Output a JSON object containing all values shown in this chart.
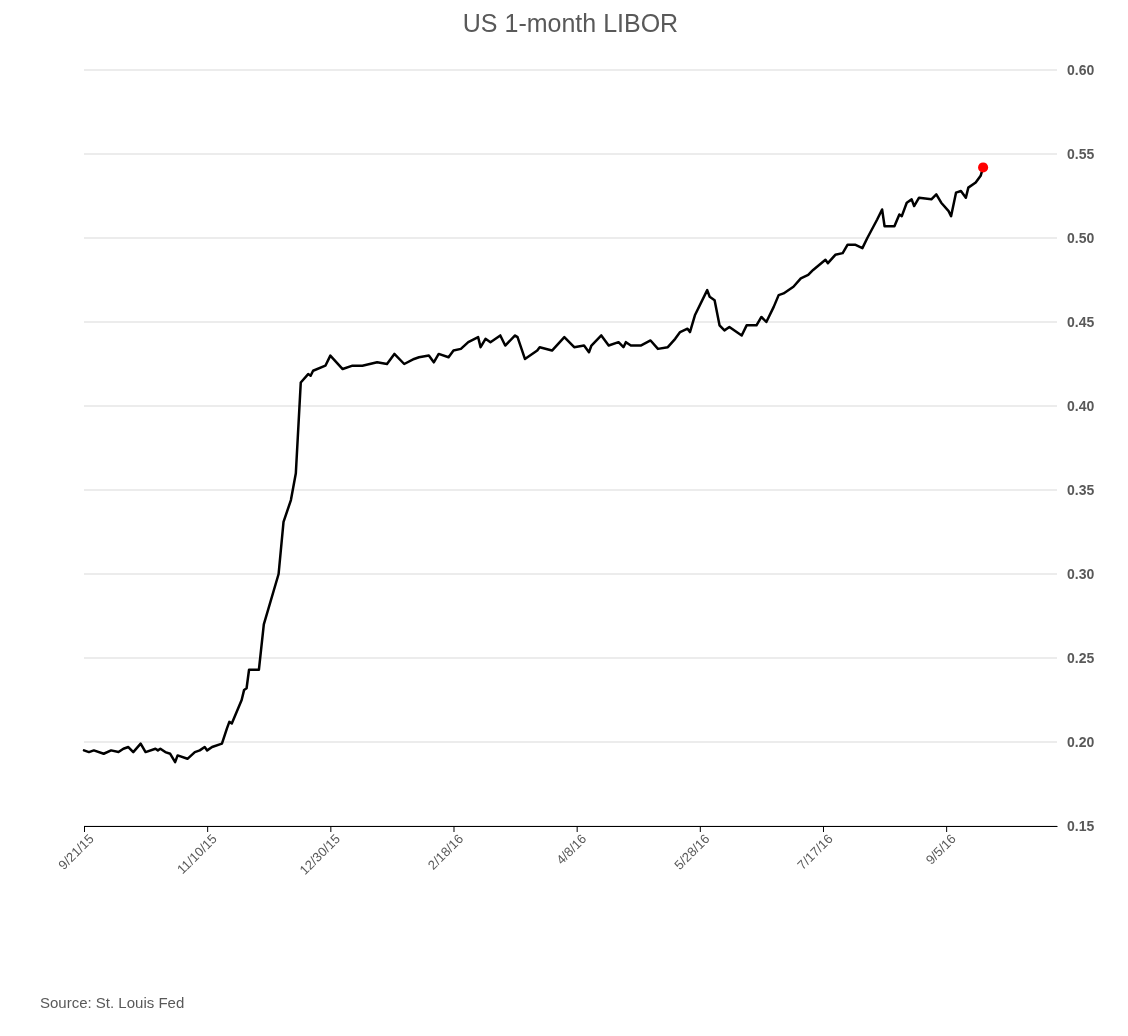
{
  "chart_data": {
    "type": "line",
    "title": "US 1-month LIBOR",
    "xlim": [
      "2015-09-21",
      "2016-10-20"
    ],
    "xticks": [
      {
        "value": "2015-09-21",
        "label": "9/21/15"
      },
      {
        "value": "2015-11-10",
        "label": "11/10/15"
      },
      {
        "value": "2015-12-30",
        "label": "12/30/15"
      },
      {
        "value": "2016-02-18",
        "label": "2/18/16"
      },
      {
        "value": "2016-04-08",
        "label": "4/8/16"
      },
      {
        "value": "2016-05-28",
        "label": "5/28/16"
      },
      {
        "value": "2016-07-17",
        "label": "7/17/16"
      },
      {
        "value": "2016-09-05",
        "label": "9/5/16"
      }
    ],
    "ylim": [
      0.15,
      0.6
    ],
    "yticks": [
      {
        "value": 0.6,
        "label": "0.60"
      },
      0.55,
      {
        "value": 0.5,
        "label": "0.50"
      },
      0.45,
      {
        "value": 0.4,
        "label": "0.40"
      },
      0.35,
      {
        "value": 0.3,
        "label": "0.30"
      },
      0.25,
      {
        "value": 0.2,
        "label": "0.20"
      },
      0.15
    ],
    "grid": "y",
    "annotations": [
      "Source: St. Louis Fed"
    ],
    "series": [
      {
        "color": "#000000",
        "x": [
          "2015-09-21",
          "2015-09-23",
          "2015-09-25",
          "2015-09-29",
          "2015-10-02",
          "2015-10-05",
          "2015-10-07",
          "2015-10-09",
          "2015-10-11",
          "2015-10-14",
          "2015-10-16",
          "2015-10-20",
          "2015-10-21",
          "2015-10-22",
          "2015-10-24",
          "2015-10-26",
          "2015-10-28",
          "2015-10-29",
          "2015-11-02",
          "2015-11-05",
          "2015-11-07",
          "2015-11-09",
          "2015-11-10",
          "2015-11-12",
          "2015-11-16",
          "2015-11-18",
          "2015-11-19",
          "2015-11-20",
          "2015-11-24",
          "2015-11-25",
          "2015-11-26",
          "2015-11-27",
          "2015-12-01",
          "2015-12-03",
          "2015-12-09",
          "2015-12-11",
          "2015-12-14",
          "2015-12-16",
          "2015-12-18",
          "2015-12-21",
          "2015-12-22",
          "2015-12-23",
          "2015-12-28",
          "2015-12-30",
          "2016-01-04",
          "2016-01-08",
          "2016-01-12",
          "2016-01-18",
          "2016-01-22",
          "2016-01-25",
          "2016-01-29",
          "2016-02-02",
          "2016-02-04",
          "2016-02-08",
          "2016-02-10",
          "2016-02-12",
          "2016-02-16",
          "2016-02-18",
          "2016-02-21",
          "2016-02-24",
          "2016-02-28",
          "2016-02-29",
          "2016-03-02",
          "2016-03-04",
          "2016-03-08",
          "2016-03-10",
          "2016-03-14",
          "2016-03-15",
          "2016-03-18",
          "2016-03-23",
          "2016-03-24",
          "2016-03-29",
          "2016-04-03",
          "2016-04-07",
          "2016-04-11",
          "2016-04-13",
          "2016-04-14",
          "2016-04-18",
          "2016-04-21",
          "2016-04-25",
          "2016-04-27",
          "2016-04-28",
          "2016-04-30",
          "2016-05-04",
          "2016-05-08",
          "2016-05-11",
          "2016-05-15",
          "2016-05-18",
          "2016-05-20",
          "2016-05-23",
          "2016-05-24",
          "2016-05-26",
          "2016-05-31",
          "2016-06-01",
          "2016-06-03",
          "2016-06-05",
          "2016-06-07",
          "2016-06-09",
          "2016-06-14",
          "2016-06-16",
          "2016-06-20",
          "2016-06-22",
          "2016-06-24",
          "2016-06-27",
          "2016-06-29",
          "2016-07-01",
          "2016-07-05",
          "2016-07-08",
          "2016-07-11",
          "2016-07-13",
          "2016-07-18",
          "2016-07-19",
          "2016-07-22",
          "2016-07-25",
          "2016-07-27",
          "2016-07-30",
          "2016-08-02",
          "2016-08-04",
          "2016-08-08",
          "2016-08-10",
          "2016-08-11",
          "2016-08-15",
          "2016-08-17",
          "2016-08-18",
          "2016-08-20",
          "2016-08-22",
          "2016-08-23",
          "2016-08-25",
          "2016-08-30",
          "2016-09-01",
          "2016-09-03",
          "2016-09-06",
          "2016-09-07",
          "2016-09-09",
          "2016-09-11",
          "2016-09-13",
          "2016-09-14",
          "2016-09-17",
          "2016-09-19",
          "2016-09-20"
        ],
        "values": [
          0.195,
          0.194,
          0.195,
          0.193,
          0.195,
          0.194,
          0.196,
          0.197,
          0.194,
          0.199,
          0.194,
          0.196,
          0.195,
          0.196,
          0.194,
          0.193,
          0.188,
          0.192,
          0.19,
          0.194,
          0.195,
          0.197,
          0.195,
          0.197,
          0.199,
          0.208,
          0.212,
          0.211,
          0.225,
          0.231,
          0.232,
          0.243,
          0.243,
          0.27,
          0.3,
          0.331,
          0.344,
          0.36,
          0.414,
          0.419,
          0.418,
          0.421,
          0.424,
          0.43,
          0.422,
          0.424,
          0.424,
          0.426,
          0.425,
          0.431,
          0.425,
          0.428,
          0.429,
          0.43,
          0.426,
          0.431,
          0.429,
          0.433,
          0.434,
          0.438,
          0.441,
          0.435,
          0.44,
          0.438,
          0.442,
          0.436,
          0.442,
          0.441,
          0.428,
          0.433,
          0.435,
          0.433,
          0.441,
          0.435,
          0.436,
          0.432,
          0.436,
          0.442,
          0.436,
          0.438,
          0.435,
          0.438,
          0.436,
          0.436,
          0.439,
          0.434,
          0.435,
          0.44,
          0.444,
          0.446,
          0.444,
          0.454,
          0.469,
          0.465,
          0.463,
          0.448,
          0.445,
          0.447,
          0.442,
          0.448,
          0.448,
          0.453,
          0.45,
          0.459,
          0.466,
          0.467,
          0.471,
          0.476,
          0.478,
          0.481,
          0.487,
          0.485,
          0.49,
          0.491,
          0.496,
          0.496,
          0.494,
          0.5,
          0.511,
          0.517,
          0.507,
          0.507,
          0.514,
          0.513,
          0.521,
          0.523,
          0.519,
          0.524,
          0.523,
          0.526,
          0.521,
          0.516,
          0.513,
          0.527,
          0.528,
          0.524,
          0.53,
          0.533,
          0.537,
          0.542
        ]
      },
      {
        "type": "scatter",
        "color": "#ff0000",
        "marker": "circle",
        "x": [
          "2016-09-20"
        ],
        "values": [
          0.542
        ]
      }
    ]
  }
}
